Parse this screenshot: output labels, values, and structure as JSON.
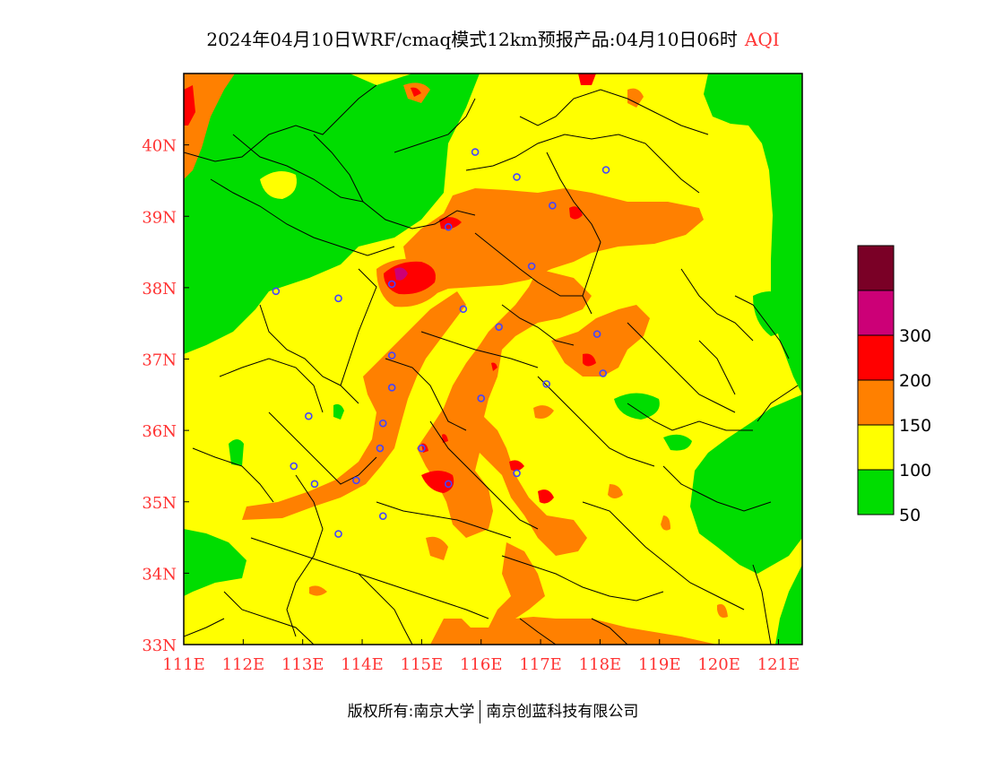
{
  "title": {
    "text": "2024年04月10日WRF/cmaq模式12km预报产品:04月10日06时",
    "variable": "AQI",
    "variable_color": "#ff3333"
  },
  "axes": {
    "lon": {
      "min": 111,
      "max": 121.4,
      "ticks": [
        {
          "v": 111,
          "label": "111E"
        },
        {
          "v": 112,
          "label": "112E"
        },
        {
          "v": 113,
          "label": "113E"
        },
        {
          "v": 114,
          "label": "114E"
        },
        {
          "v": 115,
          "label": "115E"
        },
        {
          "v": 116,
          "label": "116E"
        },
        {
          "v": 117,
          "label": "117E"
        },
        {
          "v": 118,
          "label": "118E"
        },
        {
          "v": 119,
          "label": "119E"
        },
        {
          "v": 120,
          "label": "120E"
        },
        {
          "v": 121,
          "label": "121E"
        }
      ]
    },
    "lat": {
      "min": 33,
      "max": 41,
      "ticks": [
        {
          "v": 33,
          "label": "33N"
        },
        {
          "v": 34,
          "label": "34N"
        },
        {
          "v": 35,
          "label": "35N"
        },
        {
          "v": 36,
          "label": "36N"
        },
        {
          "v": 37,
          "label": "37N"
        },
        {
          "v": 38,
          "label": "38N"
        },
        {
          "v": 39,
          "label": "39N"
        },
        {
          "v": 40,
          "label": "40N"
        }
      ]
    },
    "label_color": "#ff3333"
  },
  "legend": {
    "levels": [
      {
        "color": "#7a0026",
        "label": ""
      },
      {
        "color": "#cc0077",
        "label": "300"
      },
      {
        "color": "#ff0000",
        "label": "200"
      },
      {
        "color": "#ff8000",
        "label": "150"
      },
      {
        "color": "#ffff00",
        "label": "100"
      },
      {
        "color": "#00dd00",
        "label": "50"
      }
    ]
  },
  "colors": {
    "good": "#00dd00",
    "moderate": "#ffff00",
    "light": "#ff8000",
    "medium": "#ff0000",
    "heavy": "#cc0077",
    "severe": "#7a0026",
    "boundary": "#000000",
    "city_marker": "#4444ff"
  },
  "cities": [
    {
      "lon": 115.9,
      "lat": 39.9
    },
    {
      "lon": 116.6,
      "lat": 39.55
    },
    {
      "lon": 118.1,
      "lat": 39.65
    },
    {
      "lon": 117.2,
      "lat": 39.15
    },
    {
      "lon": 115.45,
      "lat": 38.85
    },
    {
      "lon": 116.85,
      "lat": 38.3
    },
    {
      "lon": 114.5,
      "lat": 38.05
    },
    {
      "lon": 112.55,
      "lat": 37.95
    },
    {
      "lon": 113.6,
      "lat": 37.85
    },
    {
      "lon": 115.7,
      "lat": 37.7
    },
    {
      "lon": 116.3,
      "lat": 37.45
    },
    {
      "lon": 117.95,
      "lat": 37.35
    },
    {
      "lon": 114.5,
      "lat": 37.05
    },
    {
      "lon": 118.05,
      "lat": 36.8
    },
    {
      "lon": 117.1,
      "lat": 36.65
    },
    {
      "lon": 114.5,
      "lat": 36.6
    },
    {
      "lon": 116.0,
      "lat": 36.45
    },
    {
      "lon": 113.1,
      "lat": 36.2
    },
    {
      "lon": 114.35,
      "lat": 36.1
    },
    {
      "lon": 115.0,
      "lat": 35.75
    },
    {
      "lon": 114.3,
      "lat": 35.75
    },
    {
      "lon": 112.85,
      "lat": 35.5
    },
    {
      "lon": 116.6,
      "lat": 35.4
    },
    {
      "lon": 113.9,
      "lat": 35.3
    },
    {
      "lon": 115.45,
      "lat": 35.25
    },
    {
      "lon": 113.2,
      "lat": 35.25
    },
    {
      "lon": 114.35,
      "lat": 34.8
    },
    {
      "lon": 113.6,
      "lat": 34.55
    }
  ],
  "footer": {
    "left": "版权所有:南京大学",
    "right": "南京创蓝科技有限公司"
  }
}
